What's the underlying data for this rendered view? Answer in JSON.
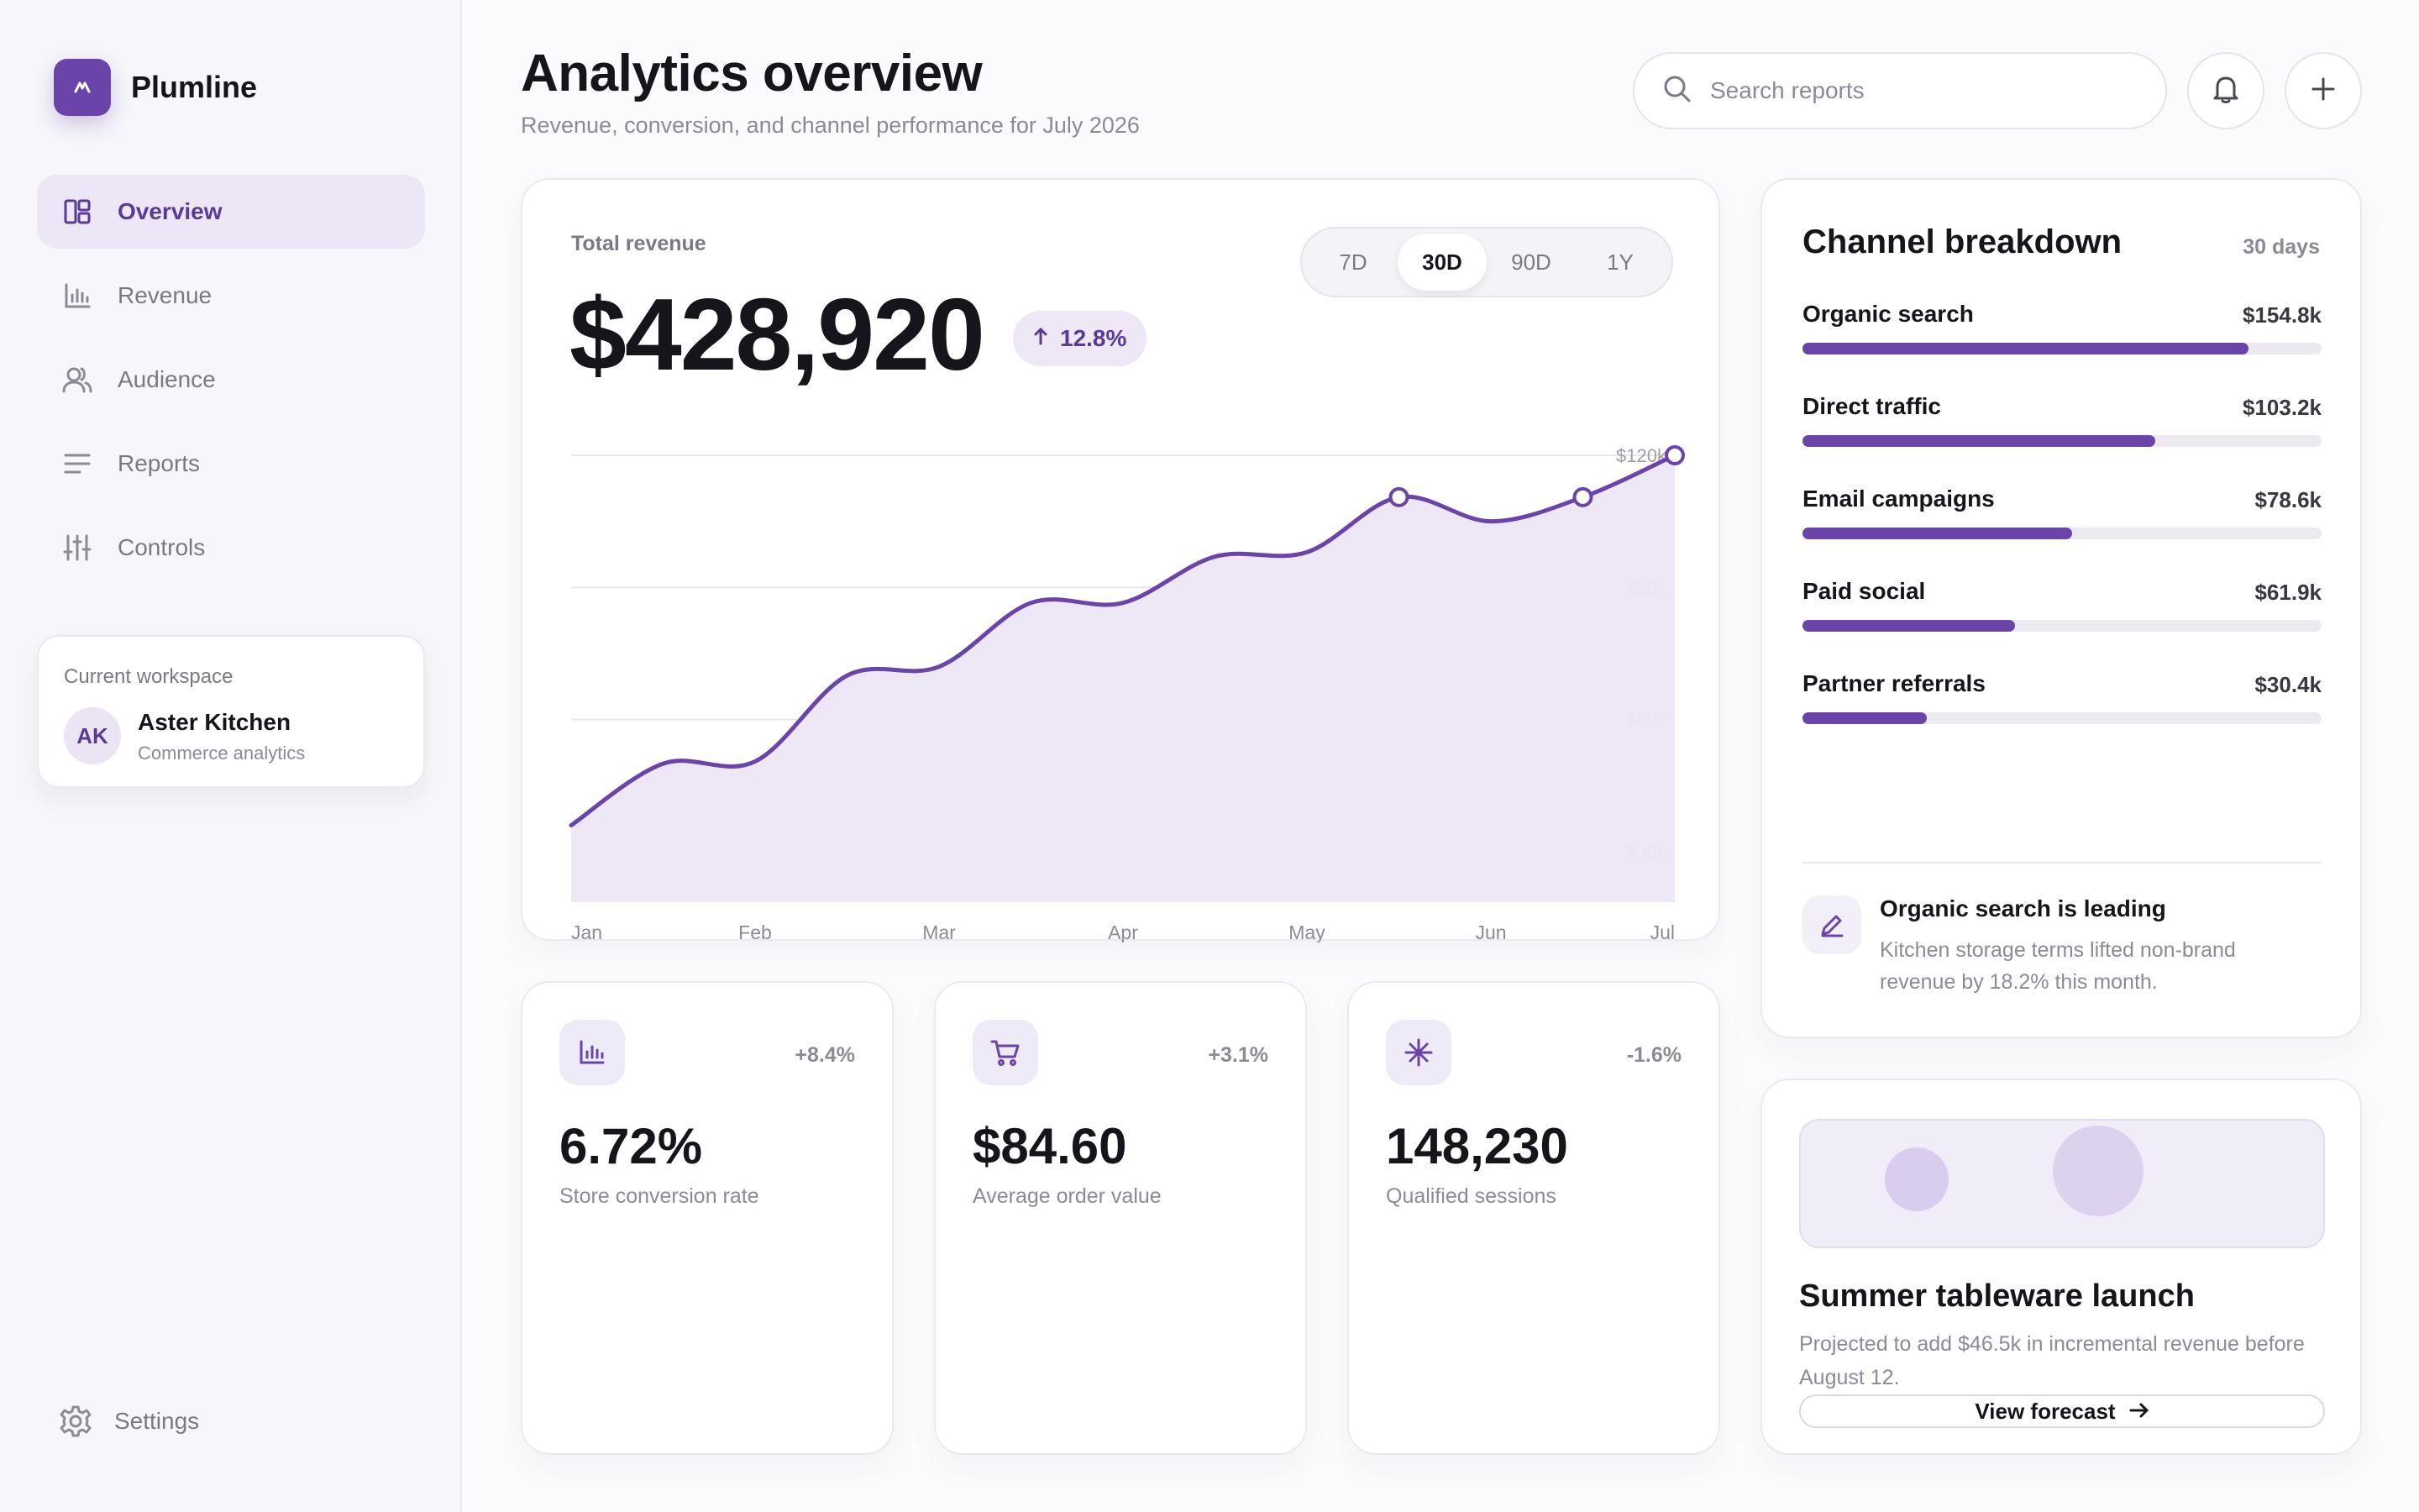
{
  "brand": {
    "name": "Plumline"
  },
  "sidebar": {
    "items": [
      {
        "label": "Overview",
        "icon": "layout-icon",
        "active": true
      },
      {
        "label": "Revenue",
        "icon": "bar-chart-icon",
        "active": false
      },
      {
        "label": "Audience",
        "icon": "users-icon",
        "active": false
      },
      {
        "label": "Reports",
        "icon": "lines-icon",
        "active": false
      },
      {
        "label": "Controls",
        "icon": "sliders-icon",
        "active": false
      }
    ],
    "workspace": {
      "label": "Current workspace",
      "initials": "AK",
      "name": "Aster Kitchen",
      "subtitle": "Commerce analytics"
    },
    "settings_label": "Settings"
  },
  "header": {
    "title": "Analytics overview",
    "subtitle": "Revenue, conversion, and channel performance for July 2026",
    "search_placeholder": "Search reports"
  },
  "revenue": {
    "label": "Total revenue",
    "value": "$428,920",
    "delta": "12.8%",
    "ranges": [
      "7D",
      "30D",
      "90D",
      "1Y"
    ],
    "active_range": "30D"
  },
  "chart_data": {
    "type": "area",
    "categories": [
      "Jan",
      "Feb",
      "Mar",
      "Apr",
      "May",
      "Jun",
      "Jul"
    ],
    "x": [
      0,
      0.5,
      1,
      1.5,
      2,
      2.5,
      3,
      3.5,
      4,
      4.5,
      5,
      5.5,
      6
    ],
    "y": [
      36000,
      50000,
      50500,
      70000,
      72000,
      86500,
      86500,
      97000,
      98000,
      110500,
      105000,
      110500,
      120000
    ],
    "highlighted_x": [
      4.5,
      5.5,
      6
    ],
    "ylim": [
      30000,
      120000
    ],
    "yticks": [
      {
        "value": 120000,
        "label": "$120k"
      },
      {
        "value": 90000,
        "label": "$90k"
      },
      {
        "value": 60000,
        "label": "$60k"
      },
      {
        "value": 30000,
        "label": "$30k"
      }
    ],
    "grid": true,
    "color": "#6a44a8",
    "fill": "#ede7f6"
  },
  "metrics": [
    {
      "icon": "bar-chart-icon",
      "delta": "+8.4%",
      "value": "6.72%",
      "label": "Store conversion rate"
    },
    {
      "icon": "cart-icon",
      "delta": "+3.1%",
      "value": "$84.60",
      "label": "Average order value"
    },
    {
      "icon": "asterisk-icon",
      "delta": "-1.6%",
      "value": "148,230",
      "label": "Qualified sessions"
    }
  ],
  "channels": {
    "title": "Channel breakdown",
    "period": "30 days",
    "items": [
      {
        "name": "Organic search",
        "value": "$154.8k",
        "share": 0.86
      },
      {
        "name": "Direct traffic",
        "value": "$103.2k",
        "share": 0.68
      },
      {
        "name": "Email campaigns",
        "value": "$78.6k",
        "share": 0.52
      },
      {
        "name": "Paid social",
        "value": "$61.9k",
        "share": 0.41
      },
      {
        "name": "Partner referrals",
        "value": "$30.4k",
        "share": 0.24
      }
    ],
    "insight": {
      "title": "Organic search is leading",
      "text": "Kitchen storage terms lifted non-brand revenue by 18.2% this month."
    }
  },
  "launch": {
    "title": "Summer tableware launch",
    "text": "Projected to add $46.5k in incremental revenue before August 12.",
    "button_label": "View forecast"
  },
  "colors": {
    "accent": "#6a44a8",
    "accent_soft": "#ede7f6"
  }
}
